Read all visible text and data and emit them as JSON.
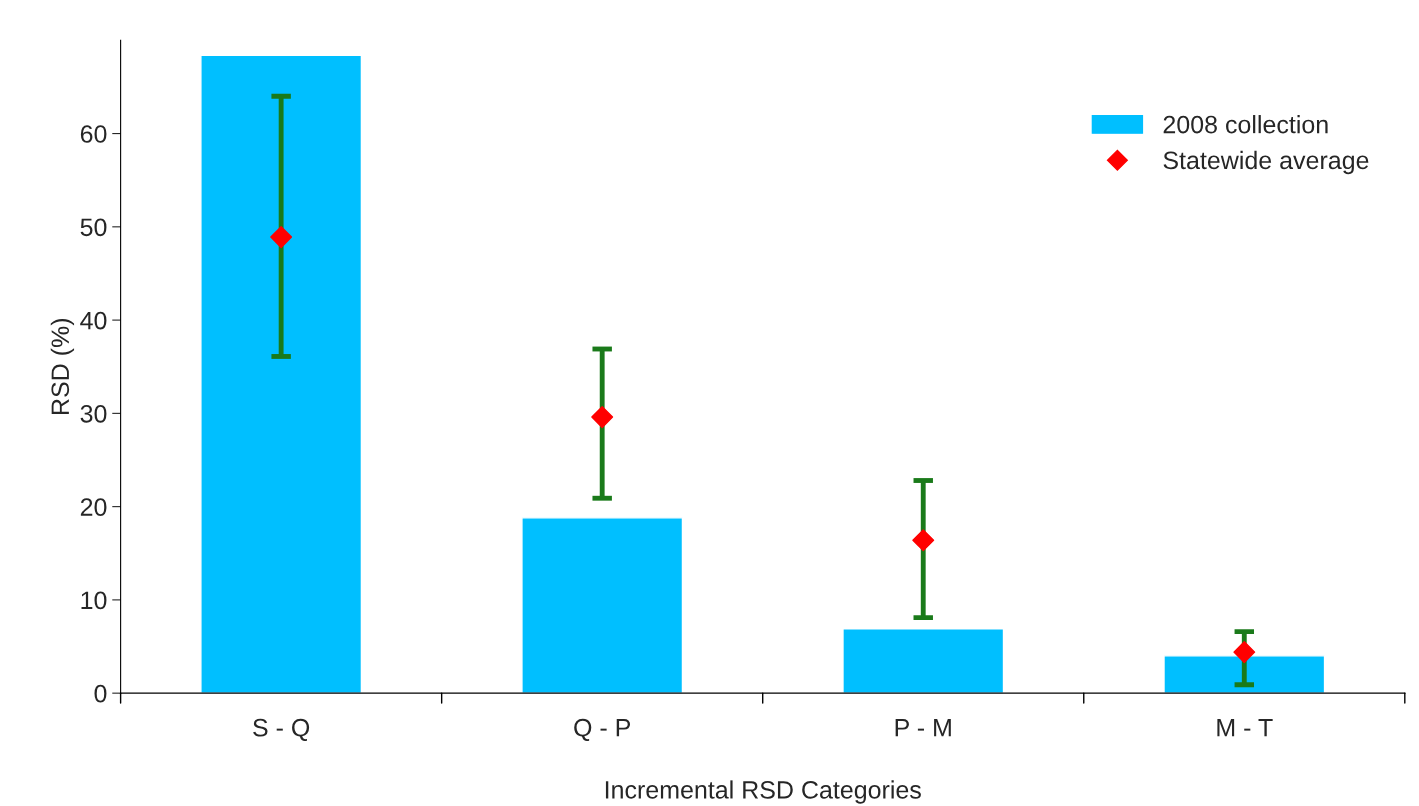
{
  "chart_data": {
    "type": "bar",
    "xlabel": "Incremental RSD Categories",
    "ylabel": "RSD (%)",
    "categories": [
      "S - Q",
      "Q - P",
      "P - M",
      "M - T"
    ],
    "series": [
      {
        "name": "2008 collection",
        "color": "#00bfff",
        "values": [
          68.4,
          18.8,
          6.9,
          4.0
        ]
      },
      {
        "name": "Statewide average",
        "type": "scatter",
        "x": [
          "S - Q",
          "Q - P",
          "P - M",
          "M - T"
        ],
        "color": "#ff0000",
        "marker": "diamond",
        "values": [
          48.9,
          29.6,
          16.4,
          4.4
        ],
        "errors": [
          [
            36.1,
            64.0
          ],
          [
            20.9,
            36.9
          ],
          [
            8.1,
            22.8
          ],
          [
            0.9,
            6.6
          ]
        ]
      }
    ],
    "ylim": [
      0,
      70
    ],
    "yticks": [
      0,
      10,
      20,
      30,
      40,
      50,
      60
    ],
    "grid": false,
    "legend": "top right"
  }
}
